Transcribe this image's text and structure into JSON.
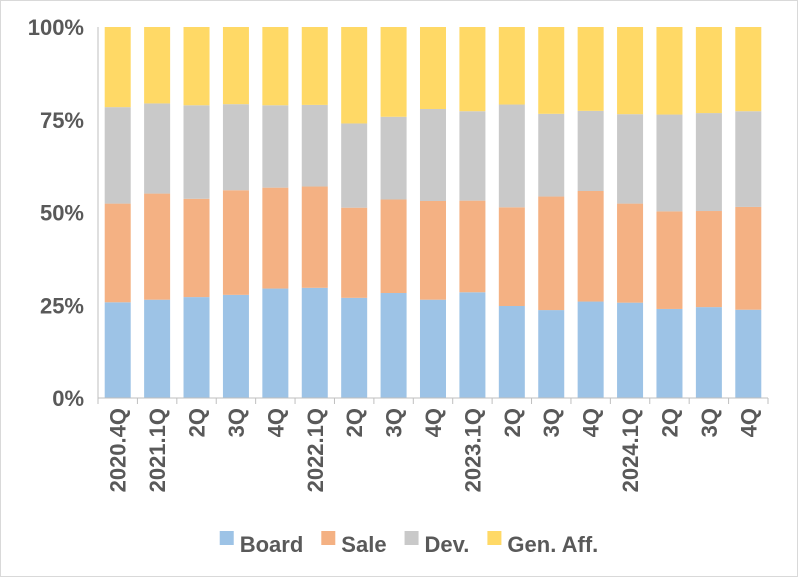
{
  "chart_data": {
    "type": "bar",
    "stacked": "percent",
    "title": "",
    "xlabel": "",
    "ylabel": "",
    "ylim": [
      0,
      100
    ],
    "y_ticks": [
      "0%",
      "25%",
      "50%",
      "75%",
      "100%"
    ],
    "grid": false,
    "legend_position": "bottom",
    "categories": [
      "2020.4Q",
      "2021.1Q",
      "2Q",
      "3Q",
      "4Q",
      "2022.1Q",
      "2Q",
      "3Q",
      "4Q",
      "2023.1Q",
      "2Q",
      "3Q",
      "4Q",
      "2024.1Q",
      "2Q",
      "3Q",
      "4Q"
    ],
    "series": [
      {
        "name": "Board",
        "color": "#9dc3e6",
        "values": [
          25.8,
          26.5,
          27.2,
          27.8,
          29.5,
          29.7,
          27.0,
          28.3,
          26.5,
          28.5,
          24.8,
          23.7,
          26.0,
          25.7,
          24.0,
          24.5,
          23.8
        ]
      },
      {
        "name": "Sale",
        "color": "#f4b183",
        "values": [
          26.6,
          28.6,
          26.5,
          28.2,
          27.2,
          27.3,
          24.3,
          25.2,
          26.6,
          24.7,
          26.6,
          30.6,
          29.8,
          26.7,
          26.3,
          25.9,
          27.7
        ]
      },
      {
        "name": "Dev.",
        "color": "#c9c9c9",
        "values": [
          26.0,
          24.3,
          25.2,
          23.2,
          22.2,
          22.0,
          22.7,
          22.3,
          24.8,
          24.1,
          27.7,
          22.3,
          21.6,
          24.1,
          26.1,
          26.4,
          25.8
        ]
      },
      {
        "name": "Gen. Aff.",
        "color": "#ffd966",
        "values": [
          21.6,
          20.6,
          21.1,
          20.8,
          21.1,
          21.0,
          26.0,
          24.2,
          22.1,
          22.7,
          20.9,
          23.4,
          22.6,
          23.5,
          23.6,
          23.2,
          22.7
        ]
      }
    ]
  }
}
